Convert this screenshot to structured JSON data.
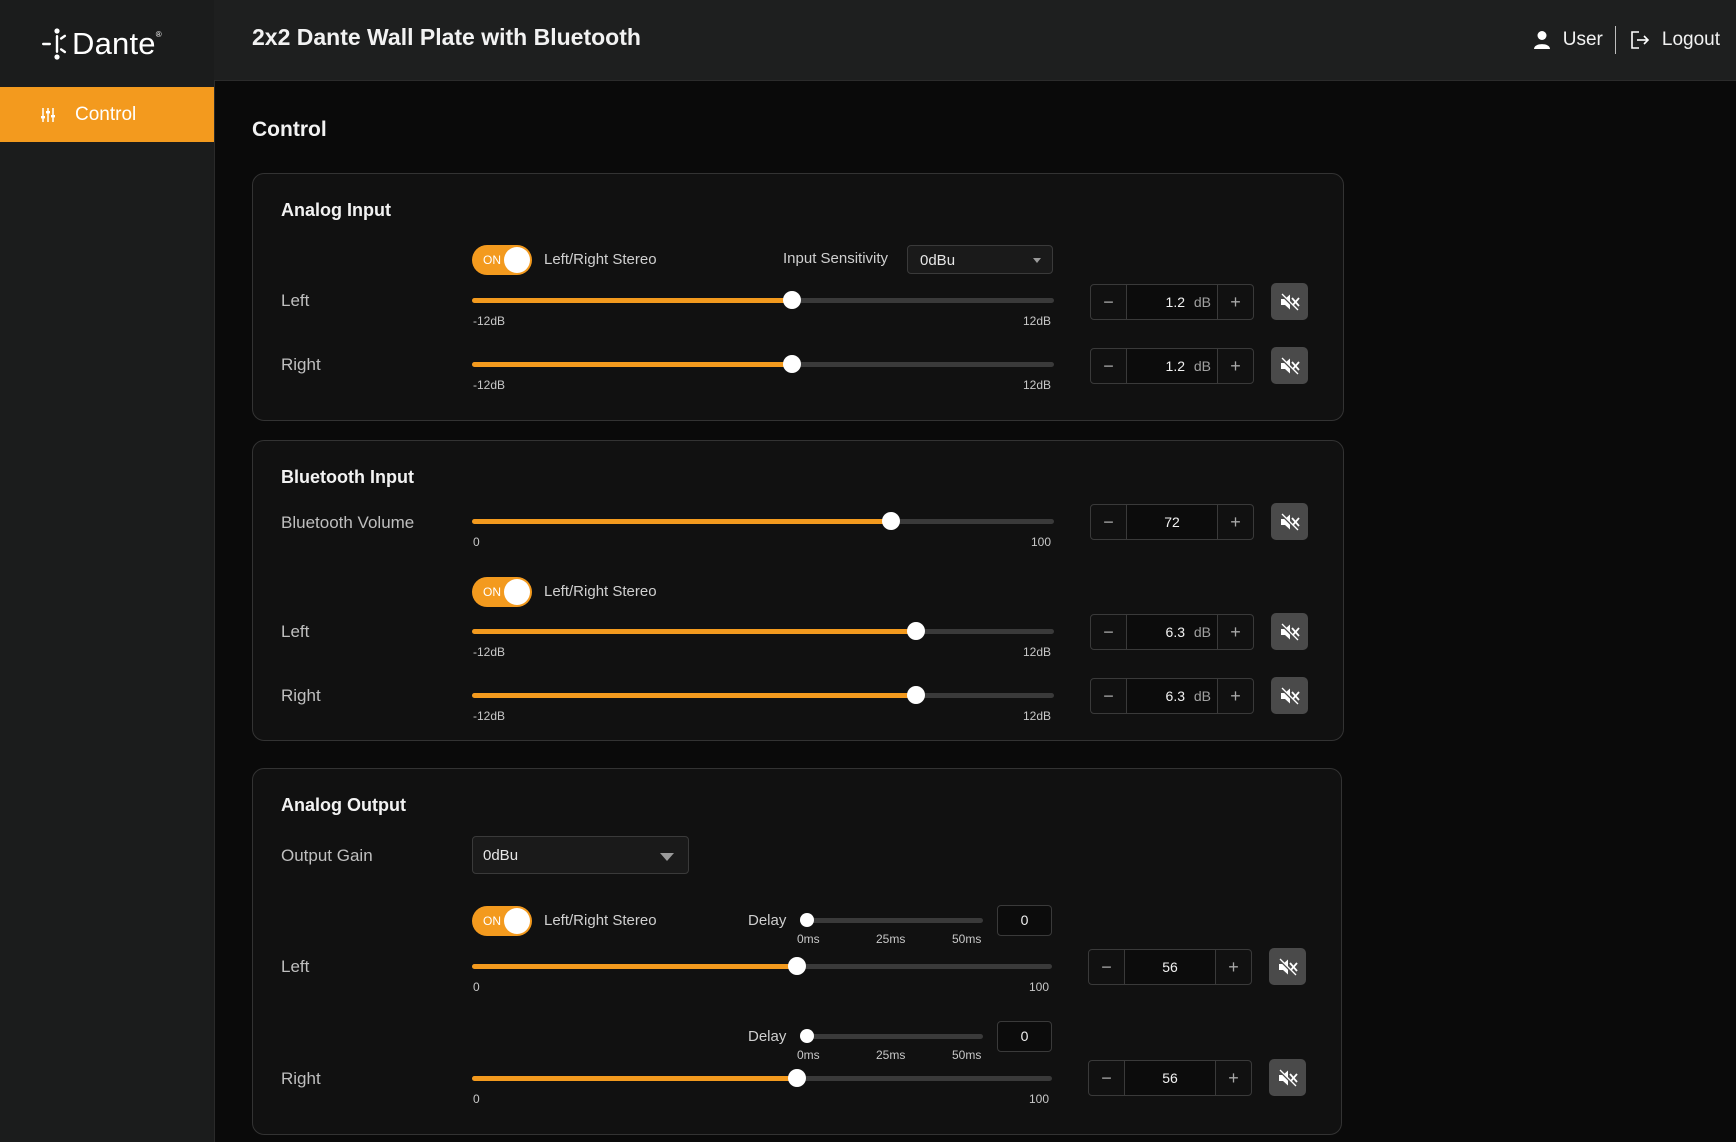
{
  "app": {
    "logo_text": "Dante",
    "logo_reg": "®",
    "device_title": "2x2 Dante Wall Plate with Bluetooth"
  },
  "sidebar": {
    "items": [
      {
        "label": "Control",
        "icon": "sliders-icon",
        "active": true
      }
    ]
  },
  "header": {
    "user_label": "User",
    "logout_label": "Logout"
  },
  "page": {
    "title": "Control"
  },
  "colors": {
    "accent": "#f39a1e",
    "background": "#0a0a0a",
    "sidebar": "#1b1c1c",
    "card": "#111111"
  },
  "analog_input": {
    "title": "Analog Input",
    "toggle": "ON",
    "stereo_label": "Left/Right Stereo",
    "sensitivity_label": "Input Sensitivity",
    "sensitivity_value": "0dBu",
    "channels": [
      {
        "label": "Left",
        "value": "1.2",
        "unit": "dB",
        "fraction": 0.55,
        "min_label": "-12dB",
        "max_label": "12dB",
        "minus": "−",
        "plus": "+"
      },
      {
        "label": "Right",
        "value": "1.2",
        "unit": "dB",
        "fraction": 0.55,
        "min_label": "-12dB",
        "max_label": "12dB",
        "minus": "−",
        "plus": "+"
      }
    ]
  },
  "bluetooth_input": {
    "title": "Bluetooth Input",
    "volume": {
      "label": "Bluetooth Volume",
      "value": "72",
      "fraction": 0.72,
      "min_label": "0",
      "max_label": "100",
      "minus": "−",
      "plus": "+"
    },
    "toggle": "ON",
    "stereo_label": "Left/Right Stereo",
    "channels": [
      {
        "label": "Left",
        "value": "6.3",
        "unit": "dB",
        "fraction": 0.7625,
        "min_label": "-12dB",
        "max_label": "12dB",
        "minus": "−",
        "plus": "+"
      },
      {
        "label": "Right",
        "value": "6.3",
        "unit": "dB",
        "fraction": 0.7625,
        "min_label": "-12dB",
        "max_label": "12dB",
        "minus": "−",
        "plus": "+"
      }
    ]
  },
  "analog_output": {
    "title": "Analog Output",
    "gain_label": "Output Gain",
    "gain_value": "0dBu",
    "toggle": "ON",
    "stereo_label": "Left/Right Stereo",
    "delay_label": "Delay",
    "delay_ticks": [
      "0ms",
      "25ms",
      "50ms"
    ],
    "channels": [
      {
        "label": "Left",
        "value": "56",
        "fraction": 0.56,
        "min_label": "0",
        "max_label": "100",
        "delay_value": "0",
        "delay_fraction": 0.0,
        "minus": "−",
        "plus": "+"
      },
      {
        "label": "Right",
        "value": "56",
        "fraction": 0.56,
        "min_label": "0",
        "max_label": "100",
        "delay_value": "0",
        "delay_fraction": 0.0,
        "minus": "−",
        "plus": "+"
      }
    ]
  }
}
